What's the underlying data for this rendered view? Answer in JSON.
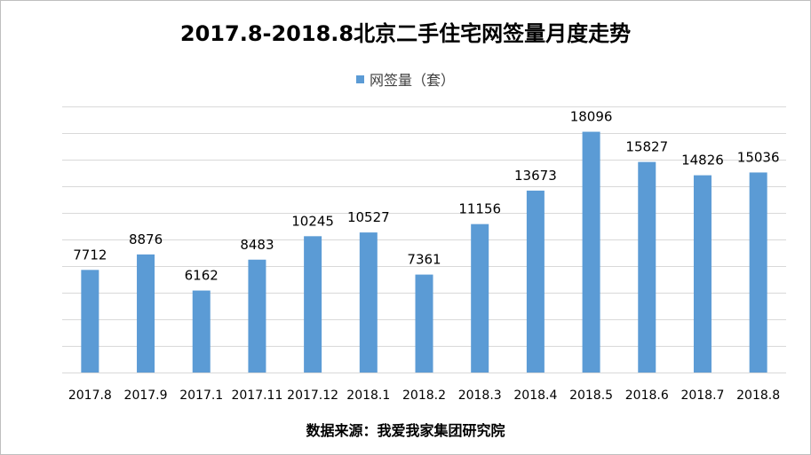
{
  "title": "2017.8-2018.8北京二手住宅网签量月度走势",
  "legend": {
    "label": "网签量（套）"
  },
  "source": "数据来源：我爱我家集团研究院",
  "colors": {
    "bar": "#5b9bd5",
    "grid": "#d9d9d9",
    "label": "#404040"
  },
  "chart_data": {
    "type": "bar",
    "categories": [
      "2017.8",
      "2017.9",
      "2017.1",
      "2017.11",
      "2017.12",
      "2018.1",
      "2018.2",
      "2018.3",
      "2018.4",
      "2018.5",
      "2018.6",
      "2018.7",
      "2018.8"
    ],
    "series": [
      {
        "name": "网签量（套）",
        "values": [
          7712,
          8876,
          6162,
          8483,
          10245,
          10527,
          7361,
          11156,
          13673,
          18096,
          15827,
          14826,
          15036
        ]
      }
    ],
    "ylim": [
      0,
      20000
    ],
    "gridlines": true,
    "y_tick_labels_shown": false,
    "data_labels": true,
    "legend_position": "top"
  }
}
